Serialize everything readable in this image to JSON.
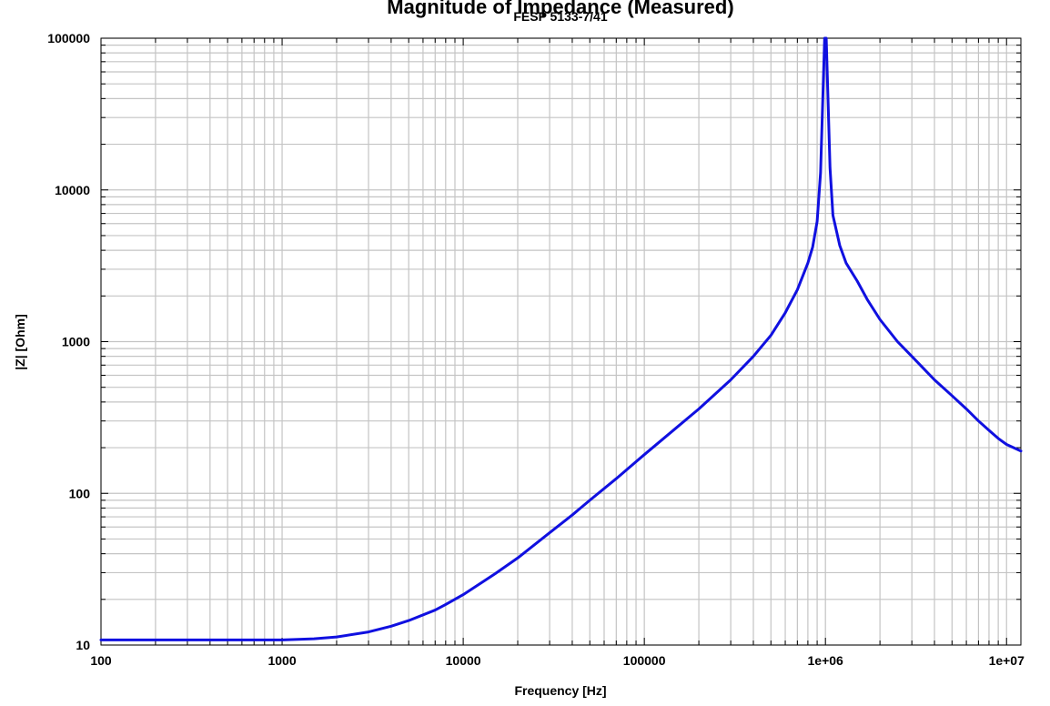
{
  "chart_data": {
    "type": "line",
    "title": "Magnitude of Impedance (Measured)",
    "subtitle": "FESP 5133-7/41",
    "xlabel": "Frequency [Hz]",
    "ylabel": "|Z| [Ohm]",
    "x_scale": "log",
    "y_scale": "log",
    "xlim": [
      100,
      12000000
    ],
    "ylim": [
      10,
      100000
    ],
    "x_ticks": [
      100,
      1000,
      10000,
      100000,
      1000000,
      10000000
    ],
    "x_tick_labels": [
      "100",
      "1000",
      "10000",
      "100000",
      "1e+06",
      "1e+07"
    ],
    "y_ticks": [
      10,
      100,
      1000,
      10000,
      100000
    ],
    "y_tick_labels": [
      "10",
      "100",
      "1000",
      "10000",
      "100000"
    ],
    "grid": true,
    "line_color": "#1010e0",
    "series": [
      {
        "x": [
          100,
          200,
          500,
          1000,
          1500,
          2000,
          3000,
          4000,
          5000,
          7000,
          8000,
          10000,
          15000,
          20000,
          30000,
          40000,
          50000,
          70000,
          100000,
          150000,
          200000,
          300000,
          400000,
          500000,
          600000,
          700000,
          800000,
          850000,
          900000,
          940000,
          970000,
          990000,
          1010000,
          1030000,
          1060000,
          1100000,
          1200000,
          1300000,
          1500000,
          1700000,
          2000000,
          2500000,
          3000000,
          4000000,
          5000000,
          6000000,
          7000000,
          8000000,
          9000000,
          10000000,
          12000000
        ],
        "y": [
          10.8,
          10.8,
          10.8,
          10.8,
          11.0,
          11.3,
          12.2,
          13.3,
          14.5,
          17.0,
          18.5,
          21.5,
          29.5,
          37.5,
          55.0,
          72.0,
          90.0,
          125.0,
          180.0,
          270.0,
          360.0,
          560.0,
          800.0,
          1100.0,
          1550.0,
          2200.0,
          3300.0,
          4200.0,
          6200.0,
          13000.0,
          45000.0,
          100000.0,
          100000.0,
          45000.0,
          14000.0,
          6800.0,
          4300.0,
          3300.0,
          2500.0,
          1900.0,
          1400.0,
          1000.0,
          800.0,
          560.0,
          440.0,
          360.0,
          300.0,
          260.0,
          230.0,
          210.0,
          190.0
        ]
      }
    ]
  }
}
